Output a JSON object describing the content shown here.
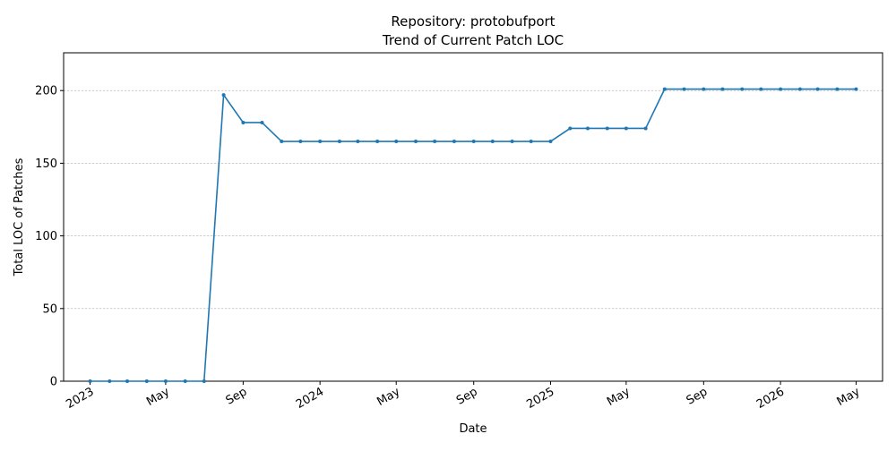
{
  "chart_data": {
    "type": "line",
    "title_line1": "Repository: protobufport",
    "title_line2": "Trend of Current Patch LOC",
    "xlabel": "Date",
    "ylabel": "Total LOC of Patches",
    "ylim": [
      0,
      226
    ],
    "yticks": [
      0,
      50,
      100,
      150,
      200
    ],
    "xlim": [
      "2022-11-20",
      "2026-06-12"
    ],
    "xticks": [
      {
        "date": "2023-01-01",
        "label": "2023"
      },
      {
        "date": "2023-05-01",
        "label": "May"
      },
      {
        "date": "2023-09-01",
        "label": "Sep"
      },
      {
        "date": "2024-01-01",
        "label": "2024"
      },
      {
        "date": "2024-05-01",
        "label": "May"
      },
      {
        "date": "2024-09-01",
        "label": "Sep"
      },
      {
        "date": "2025-01-01",
        "label": "2025"
      },
      {
        "date": "2025-05-01",
        "label": "May"
      },
      {
        "date": "2025-09-01",
        "label": "Sep"
      },
      {
        "date": "2026-01-01",
        "label": "2026"
      },
      {
        "date": "2026-05-01",
        "label": "May"
      }
    ],
    "grid": {
      "y": true,
      "x": false
    },
    "line_color": "#1f77b4",
    "series": [
      {
        "name": "",
        "x": [
          "2023-01-01",
          "2023-02-01",
          "2023-03-01",
          "2023-04-01",
          "2023-05-01",
          "2023-06-01",
          "2023-07-01",
          "2023-08-01",
          "2023-09-01",
          "2023-10-01",
          "2023-11-01",
          "2023-12-01",
          "2024-01-01",
          "2024-02-01",
          "2024-03-01",
          "2024-04-01",
          "2024-05-01",
          "2024-06-01",
          "2024-07-01",
          "2024-08-01",
          "2024-09-01",
          "2024-10-01",
          "2024-11-01",
          "2024-12-01",
          "2025-01-01",
          "2025-02-01",
          "2025-03-01",
          "2025-04-01",
          "2025-05-01",
          "2025-06-01",
          "2025-07-01",
          "2025-08-01",
          "2025-09-01",
          "2025-10-01",
          "2025-11-01",
          "2025-12-01",
          "2026-01-01",
          "2026-02-01",
          "2026-03-01",
          "2026-04-01",
          "2026-05-01"
        ],
        "values": [
          0,
          0,
          0,
          0,
          0,
          0,
          0,
          197,
          178,
          178,
          165,
          165,
          165,
          165,
          165,
          165,
          165,
          165,
          165,
          165,
          165,
          165,
          165,
          165,
          165,
          174,
          174,
          174,
          174,
          174,
          201,
          201,
          201,
          201,
          201,
          201,
          201,
          201,
          201,
          201,
          201
        ]
      }
    ]
  }
}
